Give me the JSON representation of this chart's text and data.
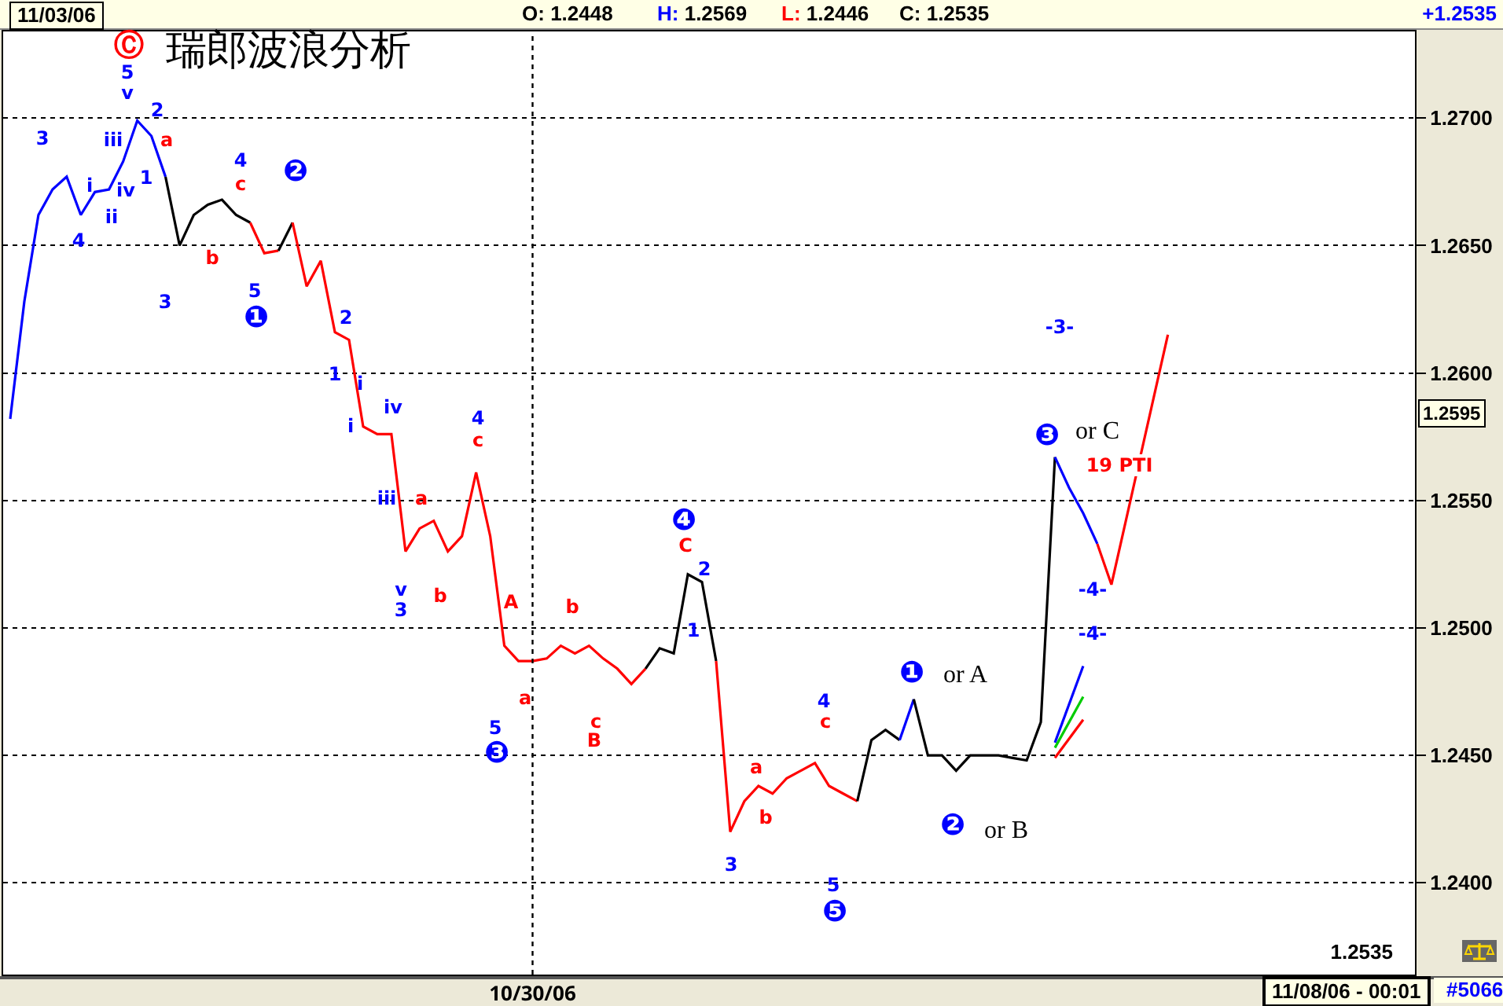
{
  "chart_data": {
    "type": "line",
    "title": "瑞郎波浪分析",
    "categories": [
      null,
      null,
      null,
      null,
      null,
      null,
      null,
      null,
      null,
      null,
      null,
      null,
      null,
      null,
      null,
      null,
      null,
      null,
      null,
      null,
      null,
      null,
      null,
      null,
      null,
      null,
      null,
      null,
      null,
      null,
      null,
      null,
      null,
      null,
      null,
      null,
      null,
      "10/30/06",
      null,
      null,
      null,
      null,
      null,
      null,
      null,
      null,
      null,
      null,
      null,
      null,
      null,
      null,
      null,
      null,
      null,
      null,
      null,
      null,
      null,
      null,
      null,
      null,
      null,
      null,
      null,
      null,
      null,
      null,
      null,
      null,
      null,
      null,
      null,
      null,
      null,
      null,
      null,
      null,
      null,
      null,
      null,
      null,
      null,
      null,
      null,
      null,
      null,
      null,
      null,
      null,
      null,
      null,
      null,
      null,
      null,
      null,
      null,
      null,
      null,
      null
    ],
    "ylim": [
      1.2364,
      1.2734
    ],
    "yticks": [
      {
        "value": 1.24,
        "label": "1.2400"
      },
      {
        "value": 1.245,
        "label": "1.2450"
      },
      {
        "value": 1.25,
        "label": "1.2500"
      },
      {
        "value": 1.255,
        "label": "1.2550"
      },
      {
        "value": 1.26,
        "label": "1.2600"
      },
      {
        "value": 1.265,
        "label": "1.2650"
      },
      {
        "value": 1.27,
        "label": "1.2700"
      }
    ],
    "grid": "y",
    "marker": "none",
    "line_style": "solid",
    "series": [
      {
        "color": "#0000ff",
        "values": [
          1.2582,
          1.2628,
          1.2662,
          1.2672,
          1.2677,
          1.2662,
          1.2671,
          1.2672,
          1.2683,
          1.2699,
          1.2693,
          1.2677,
          null,
          null,
          null,
          null,
          null,
          null,
          null,
          null,
          null,
          null,
          null,
          null,
          null,
          null,
          null,
          null,
          null,
          null,
          null,
          null,
          null,
          null,
          null,
          null,
          null,
          null,
          null,
          null,
          null,
          null,
          null,
          null,
          null,
          null,
          null,
          null,
          null,
          null,
          null,
          null,
          null,
          null,
          null,
          null,
          null,
          null,
          null,
          null,
          null,
          null,
          null,
          null,
          null,
          null,
          null,
          null,
          null,
          null,
          null,
          null,
          null,
          null,
          null,
          null,
          null,
          null,
          null,
          null,
          null,
          null,
          null,
          null,
          null,
          null,
          null,
          null,
          null,
          null,
          null,
          null,
          null,
          null,
          null,
          null,
          null,
          null,
          null,
          null
        ]
      },
      {
        "color": "#000000",
        "values": [
          null,
          null,
          null,
          null,
          null,
          null,
          null,
          null,
          null,
          null,
          null,
          1.2677,
          1.265,
          1.2662,
          1.2666,
          1.2668,
          1.2662,
          1.2659,
          null,
          null,
          null,
          null,
          null,
          null,
          null,
          null,
          null,
          null,
          null,
          null,
          null,
          null,
          null,
          null,
          null,
          null,
          null,
          null,
          null,
          null,
          null,
          null,
          null,
          null,
          null,
          null,
          null,
          null,
          null,
          null,
          null,
          null,
          null,
          null,
          null,
          null,
          null,
          null,
          null,
          null,
          null,
          null,
          null,
          null,
          null,
          null,
          null,
          null,
          null,
          null,
          null,
          null,
          null,
          null,
          null,
          null,
          null,
          null,
          null,
          null,
          null,
          null,
          null,
          null,
          null,
          null,
          null,
          null,
          null,
          null,
          null,
          null,
          null,
          null,
          null,
          null,
          null,
          null,
          null,
          null
        ]
      },
      {
        "color": "#ff0000",
        "values": [
          null,
          null,
          null,
          null,
          null,
          null,
          null,
          null,
          null,
          null,
          null,
          null,
          null,
          null,
          null,
          null,
          null,
          1.2659,
          1.2647,
          1.2648,
          null,
          null,
          null,
          null,
          null,
          null,
          null,
          null,
          null,
          null,
          null,
          null,
          null,
          null,
          null,
          null,
          null,
          null,
          null,
          null,
          null,
          null,
          null,
          null,
          null,
          null,
          null,
          null,
          null,
          null,
          null,
          null,
          null,
          null,
          null,
          null,
          null,
          null,
          null,
          null,
          null,
          null,
          null,
          null,
          null,
          null,
          null,
          null,
          null,
          null,
          null,
          null,
          null,
          null,
          null,
          null,
          null,
          null,
          null,
          null,
          null,
          null,
          null,
          null,
          null,
          null,
          null,
          null,
          null,
          null,
          null,
          null,
          null,
          null,
          null,
          null,
          null,
          null,
          null,
          null
        ]
      },
      {
        "color": "#000000",
        "values": [
          null,
          null,
          null,
          null,
          null,
          null,
          null,
          null,
          null,
          null,
          null,
          null,
          null,
          null,
          null,
          null,
          null,
          null,
          null,
          1.2648,
          1.2659,
          null,
          null,
          null,
          null,
          null,
          null,
          null,
          null,
          null,
          null,
          null,
          null,
          null,
          null,
          null,
          null,
          null,
          null,
          null,
          null,
          null,
          null,
          null,
          null,
          null,
          null,
          null,
          null,
          null,
          null,
          null,
          null,
          null,
          null,
          null,
          null,
          null,
          null,
          null,
          null,
          null,
          null,
          null,
          null,
          null,
          null,
          null,
          null,
          null,
          null,
          null,
          null,
          null,
          null,
          null,
          null,
          null,
          null,
          null,
          null,
          null,
          null,
          null,
          null,
          null,
          null,
          null,
          null,
          null,
          null,
          null,
          null,
          null,
          null,
          null,
          null,
          null,
          null,
          null
        ]
      },
      {
        "color": "#ff0000",
        "values": [
          null,
          null,
          null,
          null,
          null,
          null,
          null,
          null,
          null,
          null,
          null,
          null,
          null,
          null,
          null,
          null,
          null,
          null,
          null,
          null,
          1.2659,
          1.2634,
          1.2644,
          1.2616,
          1.2613,
          1.2579,
          1.2576,
          1.2576,
          1.253,
          1.2539,
          1.2542,
          1.253,
          1.2536,
          1.2561,
          1.2536,
          1.2493,
          1.2487,
          1.2487,
          1.2488,
          1.2493,
          1.249,
          1.2493,
          1.2488,
          1.2484,
          1.2478,
          1.2484,
          null,
          null,
          null,
          null,
          null,
          null,
          null,
          null,
          null,
          null,
          null,
          null,
          null,
          null,
          null,
          null,
          null,
          null,
          null,
          null,
          null,
          null,
          null,
          null,
          null,
          null,
          null,
          null,
          null,
          null,
          null,
          null,
          null,
          null,
          null,
          null,
          null,
          null,
          null,
          null,
          null,
          null,
          null,
          null,
          null,
          null,
          null,
          null,
          null,
          null,
          null,
          null,
          null,
          null
        ]
      },
      {
        "color": "#000000",
        "values": [
          null,
          null,
          null,
          null,
          null,
          null,
          null,
          null,
          null,
          null,
          null,
          null,
          null,
          null,
          null,
          null,
          null,
          null,
          null,
          null,
          null,
          null,
          null,
          null,
          null,
          null,
          null,
          null,
          null,
          null,
          null,
          null,
          null,
          null,
          null,
          null,
          null,
          null,
          null,
          null,
          null,
          null,
          null,
          null,
          null,
          1.2484,
          1.2492,
          1.249,
          1.2521,
          1.2518,
          1.2487,
          null,
          null,
          null,
          null,
          null,
          null,
          null,
          null,
          null,
          null,
          null,
          null,
          null,
          null,
          null,
          null,
          null,
          null,
          null,
          null,
          null,
          null,
          null,
          null,
          null,
          null,
          null,
          null,
          null,
          null,
          null,
          null,
          null,
          null,
          null,
          null,
          null,
          null,
          null,
          null,
          null,
          null,
          null,
          null,
          null,
          null,
          null,
          null,
          null
        ]
      },
      {
        "color": "#ff0000",
        "values": [
          null,
          null,
          null,
          null,
          null,
          null,
          null,
          null,
          null,
          null,
          null,
          null,
          null,
          null,
          null,
          null,
          null,
          null,
          null,
          null,
          null,
          null,
          null,
          null,
          null,
          null,
          null,
          null,
          null,
          null,
          null,
          null,
          null,
          null,
          null,
          null,
          null,
          null,
          null,
          null,
          null,
          null,
          null,
          null,
          null,
          null,
          null,
          null,
          null,
          null,
          1.2487,
          1.242,
          1.2432,
          1.2438,
          1.2435,
          1.2441,
          1.2444,
          1.2447,
          1.2438,
          1.2435,
          1.2432,
          null,
          null,
          null,
          null,
          null,
          null,
          null,
          null,
          null,
          null,
          null,
          null,
          null,
          null,
          null,
          null,
          null,
          null,
          null,
          null,
          null,
          null,
          null,
          null,
          null,
          null,
          null,
          null,
          null,
          null,
          null,
          null,
          null,
          null,
          null,
          null,
          null,
          null,
          null
        ]
      },
      {
        "color": "#000000",
        "values": [
          null,
          null,
          null,
          null,
          null,
          null,
          null,
          null,
          null,
          null,
          null,
          null,
          null,
          null,
          null,
          null,
          null,
          null,
          null,
          null,
          null,
          null,
          null,
          null,
          null,
          null,
          null,
          null,
          null,
          null,
          null,
          null,
          null,
          null,
          null,
          null,
          null,
          null,
          null,
          null,
          null,
          null,
          null,
          null,
          null,
          null,
          null,
          null,
          null,
          null,
          null,
          null,
          null,
          null,
          null,
          null,
          null,
          null,
          null,
          null,
          1.2432,
          1.2456,
          1.246,
          1.2456,
          null,
          null,
          null,
          null,
          null,
          null,
          null,
          null,
          null,
          null,
          null,
          null,
          null,
          null,
          null,
          null,
          null,
          null,
          null,
          null,
          null,
          null,
          null,
          null,
          null,
          null,
          null,
          null,
          null,
          null,
          null,
          null,
          null,
          null,
          null,
          null
        ]
      },
      {
        "color": "#0000ff",
        "values": [
          null,
          null,
          null,
          null,
          null,
          null,
          null,
          null,
          null,
          null,
          null,
          null,
          null,
          null,
          null,
          null,
          null,
          null,
          null,
          null,
          null,
          null,
          null,
          null,
          null,
          null,
          null,
          null,
          null,
          null,
          null,
          null,
          null,
          null,
          null,
          null,
          null,
          null,
          null,
          null,
          null,
          null,
          null,
          null,
          null,
          null,
          null,
          null,
          null,
          null,
          null,
          null,
          null,
          null,
          null,
          null,
          null,
          null,
          null,
          null,
          null,
          null,
          null,
          1.2456,
          1.2472,
          null,
          null,
          null,
          null,
          null,
          null,
          null,
          null,
          null,
          null,
          null,
          null,
          null,
          null,
          null,
          null,
          null,
          null,
          null,
          null,
          null,
          null,
          null,
          null,
          null,
          null,
          null,
          null,
          null,
          null,
          null,
          null,
          null,
          null,
          null
        ]
      },
      {
        "color": "#000000",
        "values": [
          null,
          null,
          null,
          null,
          null,
          null,
          null,
          null,
          null,
          null,
          null,
          null,
          null,
          null,
          null,
          null,
          null,
          null,
          null,
          null,
          null,
          null,
          null,
          null,
          null,
          null,
          null,
          null,
          null,
          null,
          null,
          null,
          null,
          null,
          null,
          null,
          null,
          null,
          null,
          null,
          null,
          null,
          null,
          null,
          null,
          null,
          null,
          null,
          null,
          null,
          null,
          null,
          null,
          null,
          null,
          null,
          null,
          null,
          null,
          null,
          null,
          null,
          null,
          null,
          1.2472,
          1.245,
          1.245,
          1.2444,
          1.245,
          1.245,
          1.245,
          1.2449,
          1.2448,
          1.2463,
          1.2567,
          null,
          null,
          null,
          null,
          null,
          null,
          null,
          null,
          null,
          null,
          null,
          null,
          null,
          null,
          null,
          null,
          null,
          null,
          null,
          null,
          null,
          null,
          null,
          null,
          null
        ]
      },
      {
        "color": "#0000ff",
        "values": [
          null,
          null,
          null,
          null,
          null,
          null,
          null,
          null,
          null,
          null,
          null,
          null,
          null,
          null,
          null,
          null,
          null,
          null,
          null,
          null,
          null,
          null,
          null,
          null,
          null,
          null,
          null,
          null,
          null,
          null,
          null,
          null,
          null,
          null,
          null,
          null,
          null,
          null,
          null,
          null,
          null,
          null,
          null,
          null,
          null,
          null,
          null,
          null,
          null,
          null,
          null,
          null,
          null,
          null,
          null,
          null,
          null,
          null,
          null,
          null,
          null,
          null,
          null,
          null,
          null,
          null,
          null,
          null,
          null,
          null,
          null,
          null,
          null,
          null,
          1.2567,
          1.2555,
          1.2545,
          1.2533,
          null,
          null,
          null,
          null,
          null,
          null,
          null,
          null,
          null,
          null,
          null,
          null,
          null,
          null,
          null,
          null,
          null,
          null,
          null,
          null,
          null,
          null
        ]
      },
      {
        "color": "#ff0000",
        "values": [
          null,
          null,
          null,
          null,
          null,
          null,
          null,
          null,
          null,
          null,
          null,
          null,
          null,
          null,
          null,
          null,
          null,
          null,
          null,
          null,
          null,
          null,
          null,
          null,
          null,
          null,
          null,
          null,
          null,
          null,
          null,
          null,
          null,
          null,
          null,
          null,
          null,
          null,
          null,
          null,
          null,
          null,
          null,
          null,
          null,
          null,
          null,
          null,
          null,
          null,
          null,
          null,
          null,
          null,
          null,
          null,
          null,
          null,
          null,
          null,
          null,
          null,
          null,
          null,
          null,
          null,
          null,
          null,
          null,
          null,
          null,
          null,
          null,
          null,
          null,
          null,
          null,
          1.2533,
          1.2517,
          null,
          null,
          null,
          1.2615,
          null,
          null,
          null,
          null,
          null,
          null,
          null,
          null,
          null,
          null,
          null,
          null,
          null,
          null,
          null,
          null,
          null
        ]
      },
      {
        "color": "#0000ff",
        "values": [
          null,
          null,
          null,
          null,
          null,
          null,
          null,
          null,
          null,
          null,
          null,
          null,
          null,
          null,
          null,
          null,
          null,
          null,
          null,
          null,
          null,
          null,
          null,
          null,
          null,
          null,
          null,
          null,
          null,
          null,
          null,
          null,
          null,
          null,
          null,
          null,
          null,
          null,
          null,
          null,
          null,
          null,
          null,
          null,
          null,
          null,
          null,
          null,
          null,
          null,
          null,
          null,
          null,
          null,
          null,
          null,
          null,
          null,
          null,
          null,
          null,
          null,
          null,
          null,
          null,
          null,
          null,
          null,
          null,
          null,
          null,
          null,
          null,
          null,
          1.2455,
          null,
          1.2485,
          null,
          null,
          null,
          null,
          null,
          null,
          null,
          null,
          null,
          null,
          null,
          null,
          null,
          null,
          null,
          null,
          null,
          null,
          null,
          null,
          null,
          null,
          null
        ]
      },
      {
        "color": "#00cc00",
        "values": [
          null,
          null,
          null,
          null,
          null,
          null,
          null,
          null,
          null,
          null,
          null,
          null,
          null,
          null,
          null,
          null,
          null,
          null,
          null,
          null,
          null,
          null,
          null,
          null,
          null,
          null,
          null,
          null,
          null,
          null,
          null,
          null,
          null,
          null,
          null,
          null,
          null,
          null,
          null,
          null,
          null,
          null,
          null,
          null,
          null,
          null,
          null,
          null,
          null,
          null,
          null,
          null,
          null,
          null,
          null,
          null,
          null,
          null,
          null,
          null,
          null,
          null,
          null,
          null,
          null,
          null,
          null,
          null,
          null,
          null,
          null,
          null,
          null,
          null,
          1.2453,
          null,
          1.2473,
          null,
          null,
          null,
          null,
          null,
          null,
          null,
          null,
          null,
          null,
          null,
          null,
          null,
          null,
          null,
          null,
          null,
          null,
          null,
          null,
          null,
          null,
          null
        ]
      },
      {
        "color": "#ff0000",
        "values": [
          null,
          null,
          null,
          null,
          null,
          null,
          null,
          null,
          null,
          null,
          null,
          null,
          null,
          null,
          null,
          null,
          null,
          null,
          null,
          null,
          null,
          null,
          null,
          null,
          null,
          null,
          null,
          null,
          null,
          null,
          null,
          null,
          null,
          null,
          null,
          null,
          null,
          null,
          null,
          null,
          null,
          null,
          null,
          null,
          null,
          null,
          null,
          null,
          null,
          null,
          null,
          null,
          null,
          null,
          null,
          null,
          null,
          null,
          null,
          null,
          null,
          null,
          null,
          null,
          null,
          null,
          null,
          null,
          null,
          null,
          null,
          null,
          null,
          null,
          1.2449,
          null,
          1.2464,
          null,
          null,
          null,
          null,
          null,
          null,
          null,
          null,
          null,
          null,
          null,
          null,
          null,
          null,
          null,
          null,
          null,
          null,
          null,
          null,
          null,
          null,
          null
        ]
      }
    ],
    "ref_lines": [
      {
        "axis": "x",
        "value": "10/30/06",
        "line_style": "dotted",
        "color": "#000000"
      }
    ],
    "annotations": [
      "11/03/06",
      "O: 1.2448",
      "H: 1.2569",
      "L: 1.2446",
      "C: 1.2535",
      "+1.2535",
      "1.2535",
      "11/08/06 - 00:01",
      "#5066",
      "1.2595",
      "Ⓒ",
      "5",
      "v",
      "2",
      "a",
      "3",
      "iii",
      "i",
      "iv",
      "ii",
      "4",
      "1",
      "3",
      "4",
      "c",
      "b",
      "5",
      "❶",
      "❷",
      "2",
      "1",
      "i",
      "i",
      "iv",
      "iii",
      "a",
      "4",
      "c",
      "v",
      "3",
      "b",
      "A",
      "b",
      "a",
      "5",
      "❸",
      "c",
      "B",
      "❹",
      "C",
      "2",
      "1",
      "3",
      "a",
      "b",
      "4",
      "c",
      "5",
      "❺",
      "❶",
      "or A",
      "❷",
      "or B",
      "❸",
      "or C",
      "-3-",
      "-4-",
      "-4-",
      "19 PTI"
    ]
  }
}
